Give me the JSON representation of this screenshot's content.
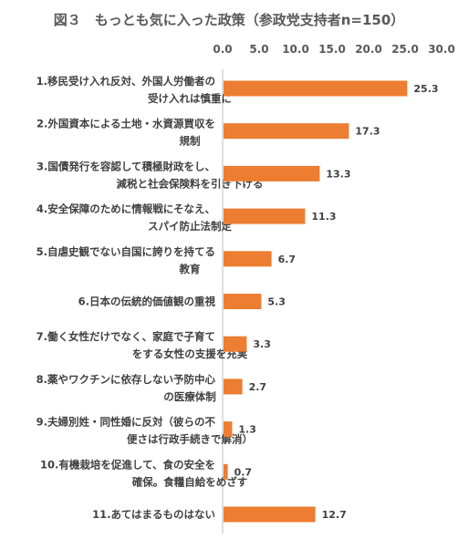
{
  "chart_data": {
    "type": "bar",
    "orientation": "horizontal",
    "title": "図３　もっとも気に入った政策（参政党支持者n=150）",
    "xlim": [
      0,
      30
    ],
    "x_ticks": [
      "0.0",
      "5.0",
      "10.0",
      "15.0",
      "20.0",
      "25.0",
      "30.0"
    ],
    "categories": [
      [
        "1.移民受け入れ反対、外国人労働者の",
        "受け入れは慎重に"
      ],
      [
        "2.外国資本による土地・水資源買収を",
        "規制"
      ],
      [
        "3.国債発行を容認して積極財政をし、",
        "減税と社会保険料を引き下げる"
      ],
      [
        "4.安全保障のために情報戦にそなえ、",
        "スパイ防止法制定"
      ],
      [
        "5.自虐史観でない自国に誇りを持てる",
        "教育"
      ],
      [
        "6.日本の伝統的価値観の重視"
      ],
      [
        "7.働く女性だけでなく、家庭で子育て",
        "をする女性の支援を充実"
      ],
      [
        "8.薬やワクチンに依存しない予防中心",
        "の医療体制"
      ],
      [
        "9.夫婦別姓・同性婚に反対（彼らの不",
        "便さは行政手続きで解消）"
      ],
      [
        "10.有機栽培を促進して、食の安全を",
        "確保。食糧自給をめざす"
      ],
      [
        "11.あてはまるものはない"
      ]
    ],
    "values": [
      25.3,
      17.3,
      13.3,
      11.3,
      6.7,
      5.3,
      3.3,
      2.7,
      1.3,
      0.7,
      12.7
    ],
    "value_labels": [
      "25.3",
      "17.3",
      "13.3",
      "11.3",
      "6.7",
      "5.3",
      "3.3",
      "2.7",
      "1.3",
      "0.7",
      "12.7"
    ],
    "bar_color": "#ED7D31",
    "grid": false,
    "legend": "none"
  }
}
